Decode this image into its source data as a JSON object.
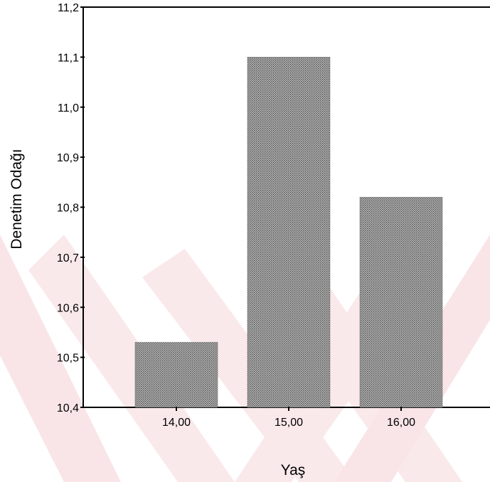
{
  "chart_data": {
    "type": "bar",
    "title": "",
    "xlabel": "Yaş",
    "ylabel": "Denetim Odağı",
    "categories": [
      "14,00",
      "15,00",
      "16,00"
    ],
    "values": [
      10.53,
      11.1,
      10.82
    ],
    "ylim": [
      10.4,
      11.2
    ],
    "yticks": [
      "10,4",
      "10,5",
      "10,6",
      "10,7",
      "10,8",
      "10,9",
      "11,0",
      "11,1",
      "11,2"
    ],
    "grid": false,
    "legend": "none",
    "colors": {
      "bar_fill": "#bfbfbf",
      "bar_dots": "#4a4a4a",
      "background_watermark": "#f2c9cc"
    }
  }
}
